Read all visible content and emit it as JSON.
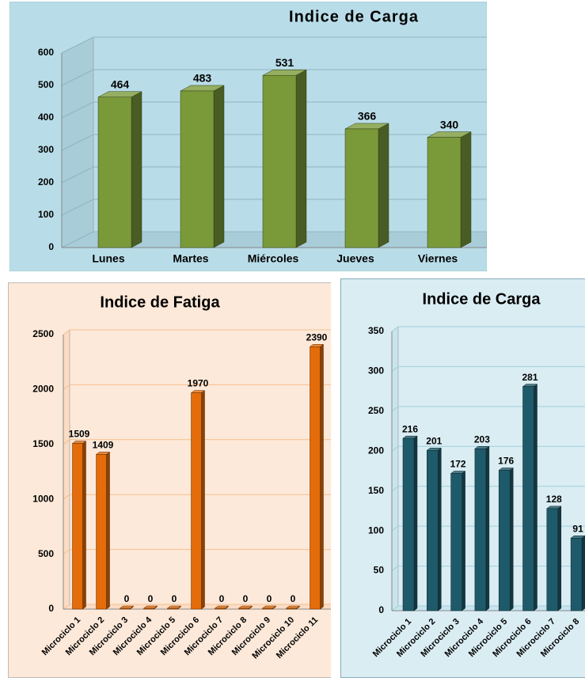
{
  "chart_data": [
    {
      "type": "bar",
      "title": "Indice de Carga",
      "categories": [
        "Lunes",
        "Martes",
        "Miércoles",
        "Jueves",
        "Viernes"
      ],
      "values": [
        464,
        483,
        531,
        366,
        340
      ],
      "color": "#7a9a3a",
      "ylim": [
        0,
        600
      ],
      "yticks": [
        0,
        100,
        200,
        300,
        400,
        500,
        600
      ],
      "grid": true
    },
    {
      "type": "bar",
      "title": "Indice de Fatiga",
      "categories": [
        "Microciclo 1",
        "Microciclo 2",
        "Microciclo 3",
        "Microciclo 4",
        "Microciclo 5",
        "Microciclo 6",
        "Microciclo 7",
        "Microciclo 8",
        "Microciclo 9",
        "Microciclo 10",
        "Microciclo 11"
      ],
      "values": [
        1509,
        1409,
        0,
        0,
        0,
        1970,
        0,
        0,
        0,
        0,
        2390
      ],
      "color": "#e46c0a",
      "ylim": [
        0,
        2500
      ],
      "yticks": [
        0,
        500,
        1000,
        1500,
        2000,
        2500
      ],
      "grid": true
    },
    {
      "type": "bar",
      "title": "Indice de Carga",
      "categories": [
        "Microciclo 1",
        "Microciclo 2",
        "Microciclo 3",
        "Microciclo 4",
        "Microciclo 5",
        "Microciclo 6",
        "Microciclo 7",
        "Microciclo 8"
      ],
      "values": [
        216,
        201,
        172,
        203,
        176,
        281,
        128,
        91
      ],
      "color": "#1f5a6a",
      "ylim": [
        0,
        350
      ],
      "yticks": [
        0,
        50,
        100,
        150,
        200,
        250,
        300,
        350
      ],
      "grid": true
    }
  ]
}
